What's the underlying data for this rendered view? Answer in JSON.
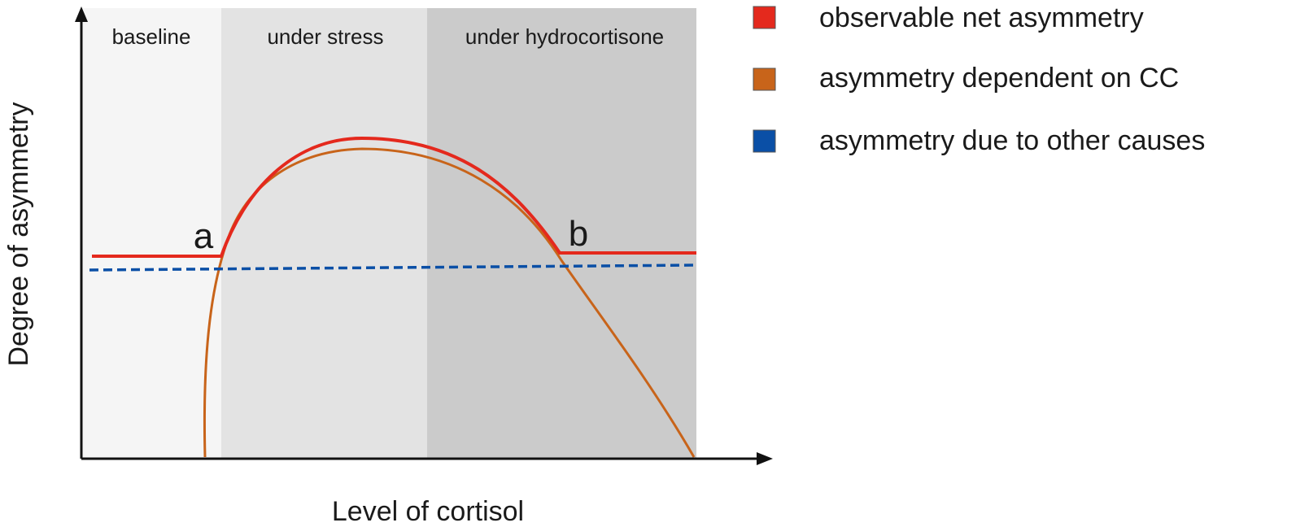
{
  "chart_data": {
    "type": "line",
    "xlabel": "Level of cortisol",
    "ylabel": "Degree of asymmetry",
    "regions": [
      {
        "label": "baseline",
        "color": "#f5f5f5"
      },
      {
        "label": "under stress",
        "color": "#e3e3e3"
      },
      {
        "label": "under hydrocortisone",
        "color": "#cbcbcb"
      }
    ],
    "point_labels": [
      "a",
      "b"
    ],
    "series": [
      {
        "name": "observable net asymmetry",
        "color": "#e4291d",
        "style": "solid"
      },
      {
        "name": "asymmetry dependent on CC",
        "color": "#c8641a",
        "style": "solid"
      },
      {
        "name": "asymmetry due to other causes",
        "color": "#0a4fa6",
        "style": "dashed"
      }
    ],
    "legend_position": "right",
    "grid": false
  }
}
